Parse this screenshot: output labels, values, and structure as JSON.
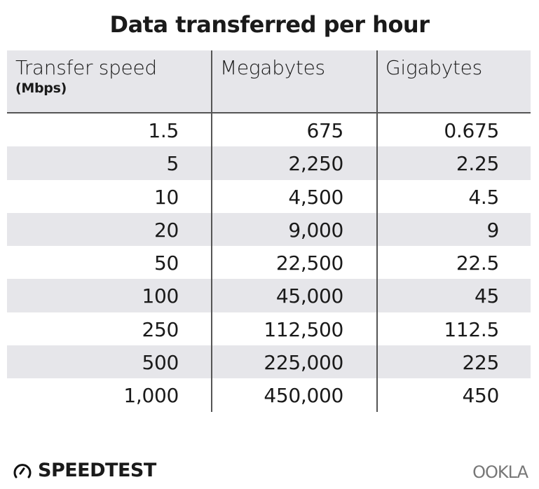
{
  "chart_data": {
    "type": "table",
    "title": "Data transferred per hour",
    "columns": [
      {
        "label": "Transfer speed",
        "sublabel": "(Mbps)"
      },
      {
        "label": "Megabytes"
      },
      {
        "label": "Gigabytes"
      }
    ],
    "rows": [
      [
        "1.5",
        "675",
        "0.675"
      ],
      [
        "5",
        "2,250",
        "2.25"
      ],
      [
        "10",
        "4,500",
        "4.5"
      ],
      [
        "20",
        "9,000",
        "9"
      ],
      [
        "50",
        "22,500",
        "22.5"
      ],
      [
        "100",
        "45,000",
        "45"
      ],
      [
        "250",
        "112,500",
        "112.5"
      ],
      [
        "500",
        "225,000",
        "225"
      ],
      [
        "1,000",
        "450,000",
        "450"
      ]
    ],
    "stripe_color": "#e6e6ea",
    "divider_color": "#555555"
  },
  "footer": {
    "speedtest_logo": "SPEEDTEST",
    "ookla_logo": "OOKLA"
  }
}
